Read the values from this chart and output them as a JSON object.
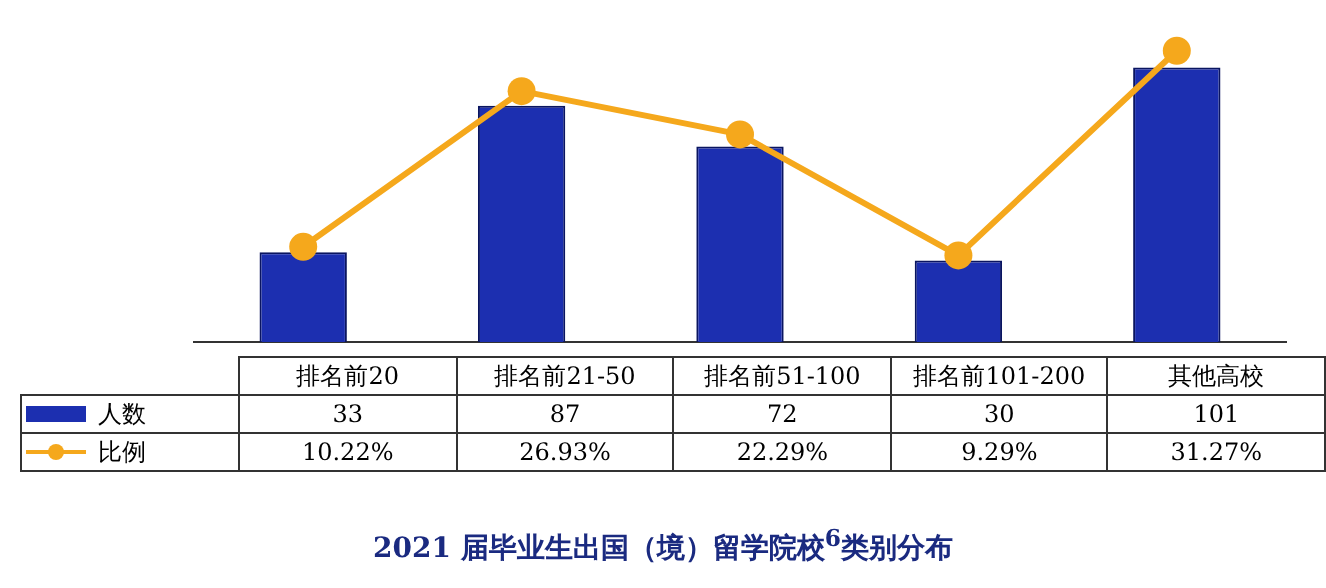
{
  "chart_data": {
    "type": "bar",
    "title": "2021 届毕业生出国（境）留学院校$^{6}$类别分布",
    "categories": [
      "排名前20",
      "排名前21-50",
      "排名前51-100",
      "排名前101-200",
      "其他高校"
    ],
    "series": [
      {
        "name": "人数",
        "color": "#1c2fb0",
        "values": [
          33,
          87,
          72,
          30,
          101
        ],
        "value_labels": [
          "33",
          "87",
          "72",
          "30",
          "101"
        ]
      },
      {
        "name": "比例",
        "type": "line",
        "axis": "y2",
        "color": "#f5a81c",
        "marker": "circle",
        "values": [
          10.22,
          26.93,
          22.29,
          9.29,
          31.27
        ],
        "value_labels": [
          "10.22%",
          "26.93%",
          "22.29%",
          "9.29%",
          "31.27%"
        ]
      }
    ],
    "grid": false,
    "legend": "bottom left"
  }
}
